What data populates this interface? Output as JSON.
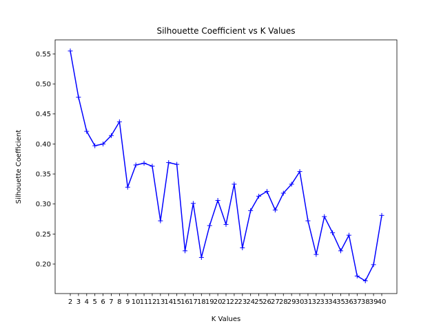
{
  "chart_data": {
    "type": "line",
    "title": "Silhouette Coefficient vs K Values",
    "xlabel": "K Values",
    "ylabel": "Silhouette Coefficient",
    "x": [
      2,
      3,
      4,
      5,
      6,
      7,
      8,
      9,
      10,
      11,
      12,
      13,
      14,
      15,
      16,
      17,
      18,
      19,
      20,
      21,
      22,
      23,
      24,
      25,
      26,
      27,
      28,
      29,
      30,
      31,
      32,
      33,
      34,
      35,
      36,
      37,
      38,
      39,
      40
    ],
    "x_tick_labels": [
      "2",
      "3",
      "4",
      "5",
      "6",
      "7",
      "8",
      "9",
      "10",
      "11",
      "12",
      "13",
      "14",
      "15",
      "16",
      "17",
      "18",
      "19",
      "20",
      "21",
      "22",
      "23",
      "24",
      "25",
      "26",
      "27",
      "28",
      "29",
      "30",
      "31",
      "32",
      "33",
      "34",
      "35",
      "36",
      "37",
      "38",
      "39",
      "40"
    ],
    "y_ticks": [
      0.2,
      0.25,
      0.3,
      0.35,
      0.4,
      0.45,
      0.5,
      0.55
    ],
    "y_tick_labels": [
      "0.20",
      "0.25",
      "0.30",
      "0.35",
      "0.40",
      "0.45",
      "0.50",
      "0.55"
    ],
    "xlim": [
      0.15,
      41.85
    ],
    "ylim": [
      0.1508,
      0.5734
    ],
    "series": [
      {
        "name": "Silhouette Coefficient",
        "color": "#0000ff",
        "marker": "+",
        "values": [
          0.555,
          0.478,
          0.421,
          0.397,
          0.4,
          0.414,
          0.437,
          0.328,
          0.365,
          0.368,
          0.363,
          0.272,
          0.369,
          0.366,
          0.222,
          0.301,
          0.211,
          0.264,
          0.306,
          0.266,
          0.333,
          0.227,
          0.289,
          0.313,
          0.321,
          0.29,
          0.318,
          0.333,
          0.354,
          0.272,
          0.216,
          0.279,
          0.252,
          0.222,
          0.248,
          0.18,
          0.172,
          0.199,
          0.281
        ]
      }
    ],
    "grid": false,
    "legend": false
  }
}
